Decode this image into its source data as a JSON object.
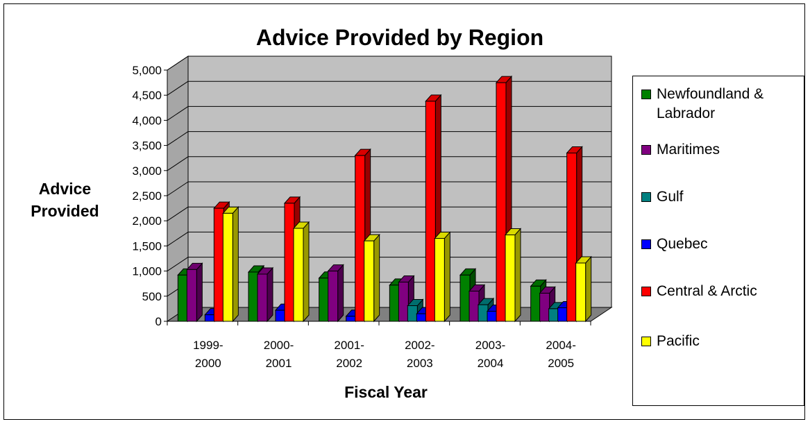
{
  "chart_data": {
    "type": "bar",
    "title": "Advice Provided by Region",
    "xlabel": "Fiscal Year",
    "ylabel": "Advice Provided",
    "ylim": [
      0,
      5000
    ],
    "yticks": [
      "0",
      "500",
      "1,000",
      "1,500",
      "2,000",
      "2,500",
      "3,000",
      "3,500",
      "4,000",
      "4,500",
      "5,000"
    ],
    "categories": [
      [
        "1999-",
        "2000"
      ],
      [
        "2000-",
        "2001"
      ],
      [
        "2001-",
        "2002"
      ],
      [
        "2002-",
        "2003"
      ],
      [
        "2003-",
        "2004"
      ],
      [
        "2004-",
        "2005"
      ]
    ],
    "grid": true,
    "legend_position": "right",
    "series": [
      {
        "name": "Newfoundland & Labrador",
        "color": "#008000",
        "values": [
          920,
          980,
          860,
          720,
          920,
          700
        ]
      },
      {
        "name": "Maritimes",
        "color": "#800080",
        "values": [
          1030,
          940,
          1000,
          780,
          600,
          560
        ]
      },
      {
        "name": "Gulf",
        "color": "#008080",
        "values": [
          0,
          0,
          0,
          310,
          330,
          250
        ]
      },
      {
        "name": "Quebec",
        "color": "#0000FF",
        "values": [
          130,
          220,
          100,
          150,
          200,
          270
        ]
      },
      {
        "name": "Central & Arctic",
        "color": "#FF0000",
        "values": [
          2250,
          2350,
          3300,
          4380,
          4750,
          3350
        ]
      },
      {
        "name": "Pacific",
        "color": "#FFFF00",
        "values": [
          2150,
          1850,
          1600,
          1650,
          1720,
          1160
        ]
      }
    ]
  }
}
